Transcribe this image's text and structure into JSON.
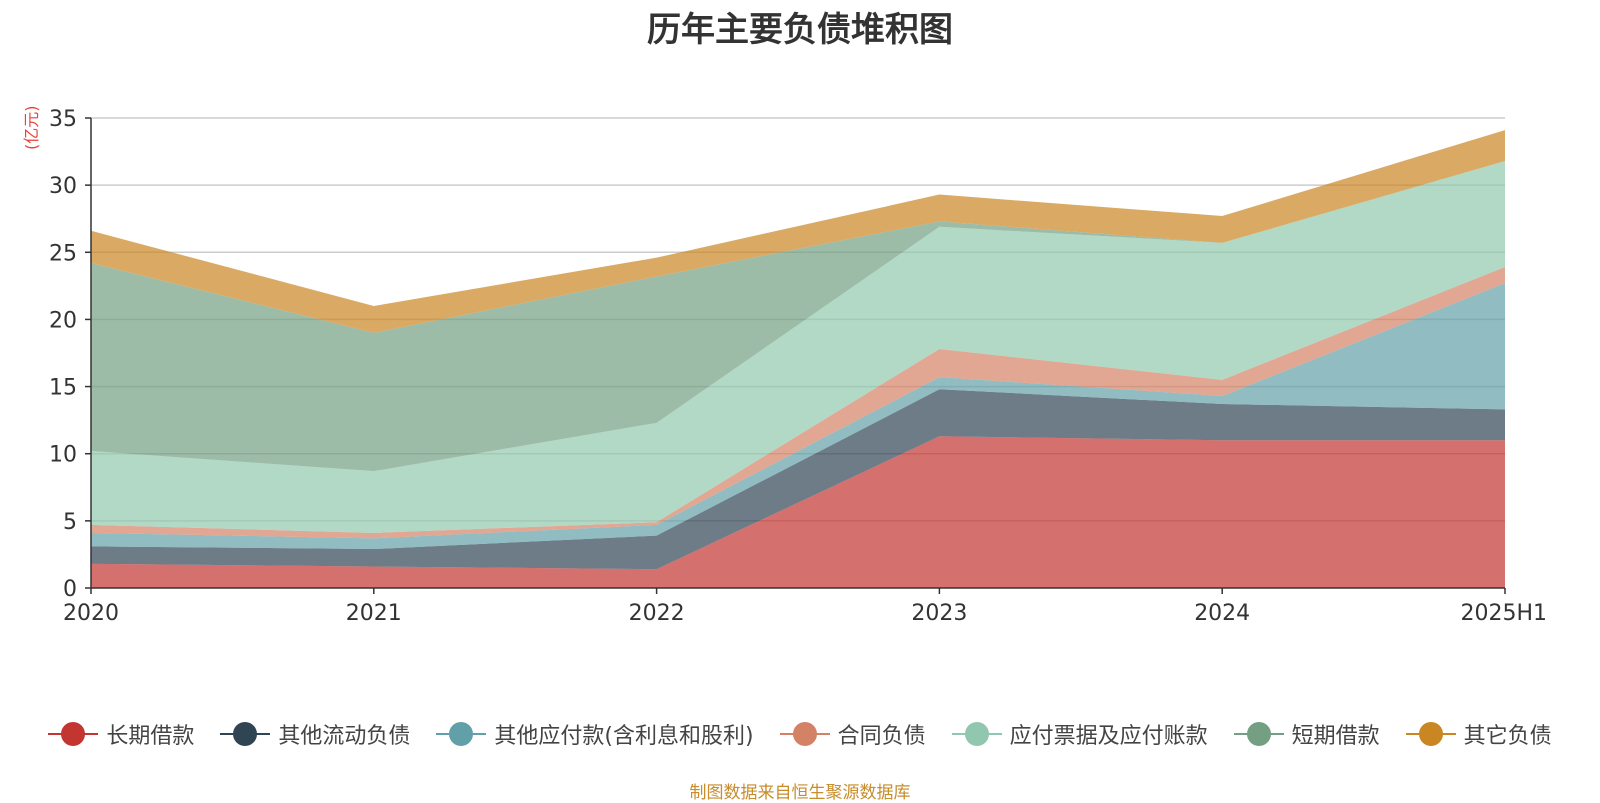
{
  "chart_data": {
    "type": "area",
    "title": "历年主要负债堆积图",
    "ylabel": "(亿元)",
    "xlabel": "",
    "categories": [
      "2020",
      "2021",
      "2022",
      "2023",
      "2024",
      "2025H1"
    ],
    "ylim": [
      0,
      35
    ],
    "yticks": [
      0,
      5,
      10,
      15,
      20,
      25,
      30,
      35
    ],
    "stacked": true,
    "grid": true,
    "legend_position": "bottom",
    "series": [
      {
        "name": "长期借款",
        "color": "#c23531",
        "values": [
          1.8,
          1.6,
          1.4,
          11.3,
          11.0,
          11.0
        ]
      },
      {
        "name": "其他流动负债",
        "color": "#2f4554",
        "values": [
          1.3,
          1.3,
          2.5,
          3.5,
          2.7,
          2.3
        ]
      },
      {
        "name": "其他应付款(含利息和股利)",
        "color": "#61a0a8",
        "values": [
          1.0,
          0.8,
          0.8,
          0.9,
          0.6,
          9.4
        ]
      },
      {
        "name": "合同负债",
        "color": "#d48265",
        "values": [
          0.6,
          0.4,
          0.2,
          2.1,
          1.2,
          1.2
        ]
      },
      {
        "name": "应付票据及应付账款",
        "color": "#91c7ae",
        "values": [
          5.5,
          4.6,
          7.4,
          9.1,
          10.2,
          7.9
        ]
      },
      {
        "name": "短期借款",
        "color": "#749f83",
        "values": [
          14.0,
          10.3,
          10.9,
          0.4,
          0.0,
          0.0
        ]
      },
      {
        "name": "其它负债",
        "color": "#ca8622",
        "values": [
          2.4,
          2.0,
          1.4,
          2.0,
          2.0,
          2.3
        ]
      }
    ],
    "source": "制图数据来自恒生聚源数据库"
  }
}
